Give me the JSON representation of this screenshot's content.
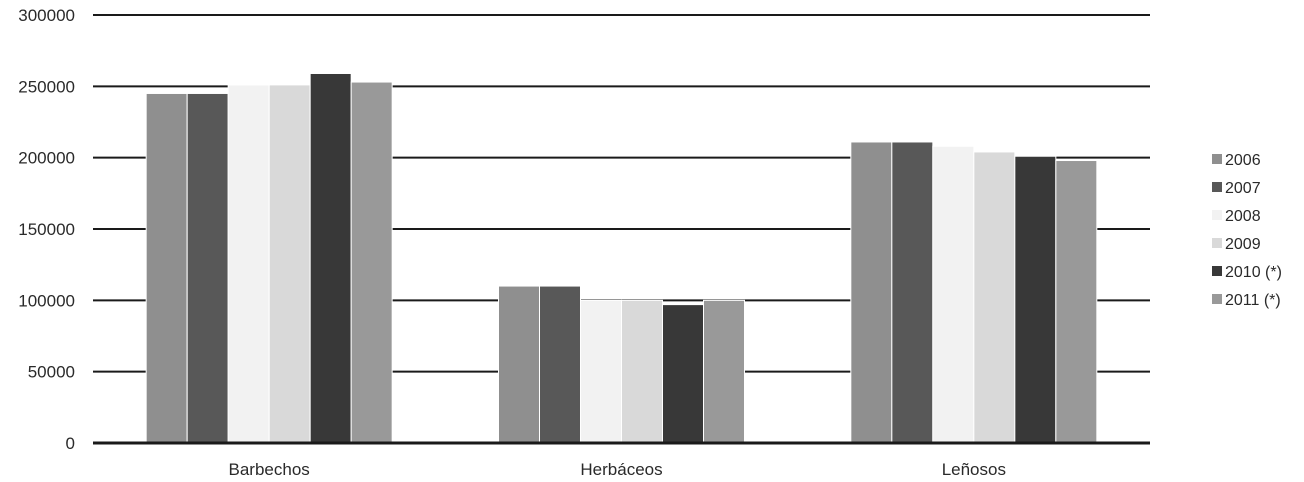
{
  "chart_data": {
    "type": "bar",
    "title": "",
    "xlabel": "",
    "ylabel": "",
    "categories": [
      "Barbechos",
      "Herbáceos",
      "Leñosos"
    ],
    "ylim": [
      0,
      300000
    ],
    "yticks": [
      0,
      50000,
      100000,
      150000,
      200000,
      250000,
      300000
    ],
    "ytick_labels": [
      "0",
      "50000",
      "100000",
      "150000",
      "200000",
      "250000",
      "300000"
    ],
    "grid": true,
    "legend_position": "right",
    "series": [
      {
        "name": "2006",
        "color": "#8f8f8f",
        "values": [
          245000,
          110000,
          211000
        ]
      },
      {
        "name": "2007",
        "color": "#585858",
        "values": [
          245000,
          110000,
          211000
        ]
      },
      {
        "name": "2008",
        "color": "#f2f2f2",
        "values": [
          251000,
          100000,
          208000
        ]
      },
      {
        "name": "2009",
        "color": "#d9d9d9",
        "values": [
          251000,
          100000,
          204000
        ]
      },
      {
        "name": "2010 (*)",
        "color": "#383838",
        "values": [
          259000,
          97000,
          201000
        ]
      },
      {
        "name": "2011 (*)",
        "color": "#999999",
        "values": [
          253000,
          100000,
          198000
        ]
      }
    ]
  }
}
